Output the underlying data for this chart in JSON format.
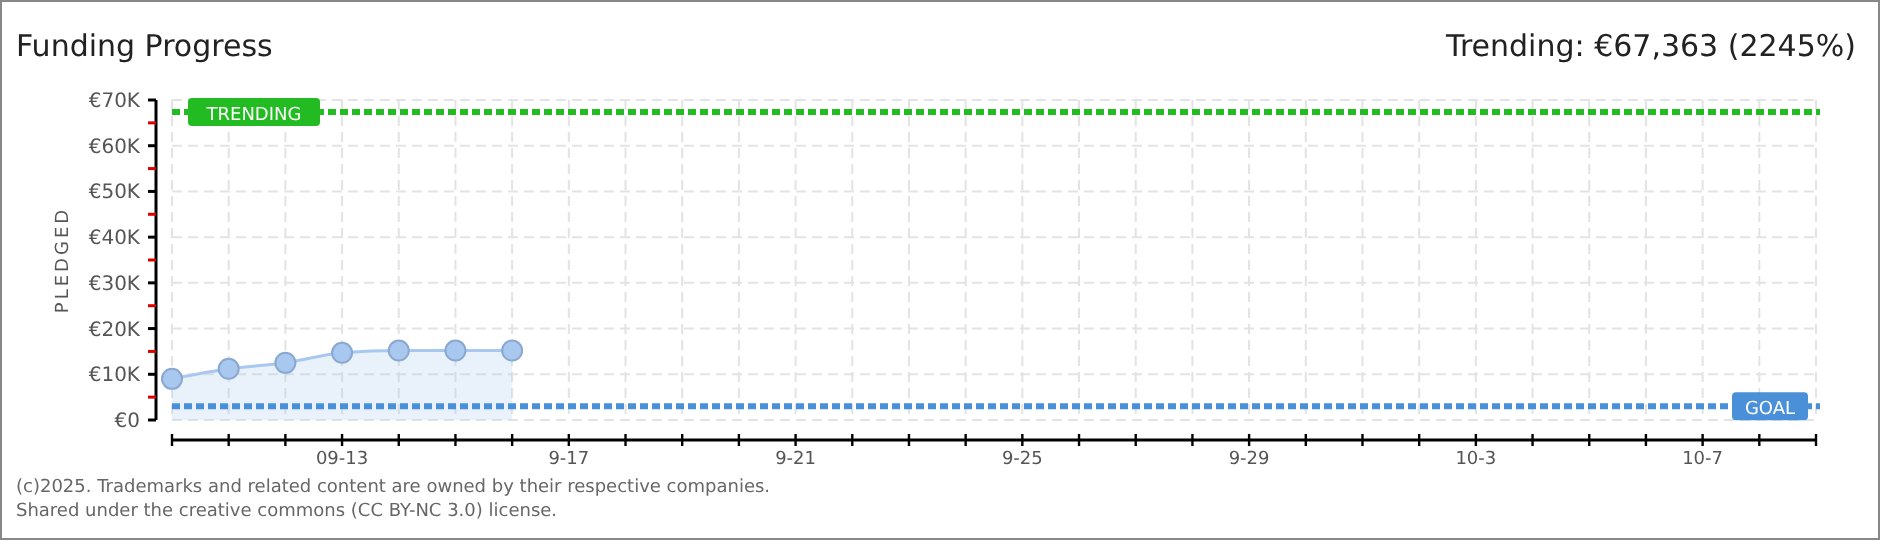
{
  "chart_data": {
    "type": "area",
    "title": "Funding Progress",
    "subtitle": "Trending: €67,363 (2245%)",
    "ylabel": "PLEDGED",
    "annotations": [
      "(c)2025. Trademarks and related content are owned by their respective companies.",
      "Shared under the creative commons (CC BY-NC 3.0) license."
    ],
    "x": [
      "2025-09-10",
      "2025-09-11",
      "2025-09-12",
      "2025-09-13",
      "2025-09-14",
      "2025-09-15",
      "2025-09-16"
    ],
    "series": [
      {
        "color": "#a8c8f0",
        "values": [
          9000,
          11200,
          12500,
          14700,
          15200,
          15200,
          15200
        ]
      }
    ],
    "marker": "circle",
    "grid": true,
    "xlim": [
      "2025-09-10",
      "2025-10-09"
    ],
    "xticks": [
      {
        "value": "2025-09-10",
        "label": null
      },
      {
        "value": "2025-09-11",
        "label": null
      },
      {
        "value": "2025-09-12",
        "label": null
      },
      {
        "value": "2025-09-13",
        "label": "09-13"
      },
      {
        "value": "2025-09-14",
        "label": null
      },
      {
        "value": "2025-09-15",
        "label": null
      },
      {
        "value": "2025-09-16",
        "label": null
      },
      {
        "value": "2025-09-17",
        "label": "9-17"
      },
      {
        "value": "2025-09-18",
        "label": null
      },
      {
        "value": "2025-09-19",
        "label": null
      },
      {
        "value": "2025-09-20",
        "label": null
      },
      {
        "value": "2025-09-21",
        "label": "9-21"
      },
      {
        "value": "2025-09-22",
        "label": null
      },
      {
        "value": "2025-09-23",
        "label": null
      },
      {
        "value": "2025-09-24",
        "label": null
      },
      {
        "value": "2025-09-25",
        "label": "9-25"
      },
      {
        "value": "2025-09-26",
        "label": null
      },
      {
        "value": "2025-09-27",
        "label": null
      },
      {
        "value": "2025-09-28",
        "label": null
      },
      {
        "value": "2025-09-29",
        "label": "9-29"
      },
      {
        "value": "2025-09-30",
        "label": null
      },
      {
        "value": "2025-10-01",
        "label": null
      },
      {
        "value": "2025-10-02",
        "label": null
      },
      {
        "value": "2025-10-03",
        "label": "10-3"
      },
      {
        "value": "2025-10-04",
        "label": null
      },
      {
        "value": "2025-10-05",
        "label": null
      },
      {
        "value": "2025-10-06",
        "label": null
      },
      {
        "value": "2025-10-07",
        "label": "10-7"
      },
      {
        "value": "2025-10-08",
        "label": null
      },
      {
        "value": "2025-10-09",
        "label": null
      }
    ],
    "ylim": [
      0,
      70000
    ],
    "yticks": [
      {
        "value": 0,
        "label": "€0"
      },
      {
        "value": 5000,
        "label": null
      },
      {
        "value": 10000,
        "label": "€10K"
      },
      {
        "value": 15000,
        "label": null
      },
      {
        "value": 20000,
        "label": "€20K"
      },
      {
        "value": 25000,
        "label": null
      },
      {
        "value": 30000,
        "label": "€30K"
      },
      {
        "value": 35000,
        "label": null
      },
      {
        "value": 40000,
        "label": "€40K"
      },
      {
        "value": 45000,
        "label": null
      },
      {
        "value": 50000,
        "label": "€50K"
      },
      {
        "value": 55000,
        "label": null
      },
      {
        "value": 60000,
        "label": "€60K"
      },
      {
        "value": 65000,
        "label": null
      },
      {
        "value": 70000,
        "label": "€70K"
      }
    ],
    "ref_lines": [
      {
        "axis": "y",
        "value": 67363,
        "label": "TRENDING",
        "color": "#22bb22",
        "line_style": "dashed"
      },
      {
        "axis": "y",
        "value": 3000,
        "label": "GOAL",
        "color": "#4a90d9",
        "line_style": "dashed"
      }
    ]
  }
}
